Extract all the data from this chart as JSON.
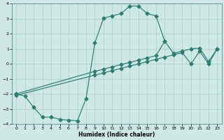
{
  "xlabel": "Humidex (Indice chaleur)",
  "xlim": [
    -0.5,
    23.5
  ],
  "ylim": [
    -4,
    4
  ],
  "xticks": [
    0,
    1,
    2,
    3,
    4,
    5,
    6,
    7,
    8,
    9,
    10,
    11,
    12,
    13,
    14,
    15,
    16,
    17,
    18,
    19,
    20,
    21,
    22,
    23
  ],
  "yticks": [
    -4,
    -3,
    -2,
    -1,
    0,
    1,
    2,
    3,
    4
  ],
  "bg_color": "#cde8e5",
  "line_color": "#2e7d72",
  "grid_color": "#afd0cc",
  "curve_upper_x": [
    0,
    1,
    2,
    3,
    4,
    5,
    6,
    7,
    8,
    9,
    10,
    11,
    12,
    13,
    14,
    15,
    16,
    17
  ],
  "curve_upper_y": [
    -2.0,
    -2.15,
    -2.9,
    -3.55,
    -3.55,
    -3.7,
    -3.75,
    -3.8,
    -2.3,
    1.4,
    3.05,
    3.2,
    3.35,
    3.85,
    3.85,
    3.35,
    3.2,
    1.5
  ],
  "line_upper_x": [
    0,
    9,
    10,
    11,
    12,
    13,
    14,
    15,
    16,
    17,
    18,
    19,
    20,
    21,
    22,
    23
  ],
  "line_upper_y": [
    -2.0,
    -0.5,
    -0.35,
    -0.2,
    -0.05,
    0.1,
    0.25,
    0.4,
    0.55,
    1.5,
    0.7,
    0.85,
    1.0,
    1.05,
    0.15,
    1.0
  ],
  "line_lower_x": [
    0,
    9,
    10,
    11,
    12,
    13,
    14,
    15,
    16,
    17,
    18,
    19,
    20,
    21,
    22,
    23
  ],
  "line_lower_y": [
    -2.1,
    -0.75,
    -0.6,
    -0.45,
    -0.3,
    -0.15,
    0.0,
    0.15,
    0.3,
    0.45,
    0.6,
    0.75,
    0.0,
    0.85,
    0.0,
    1.0
  ]
}
